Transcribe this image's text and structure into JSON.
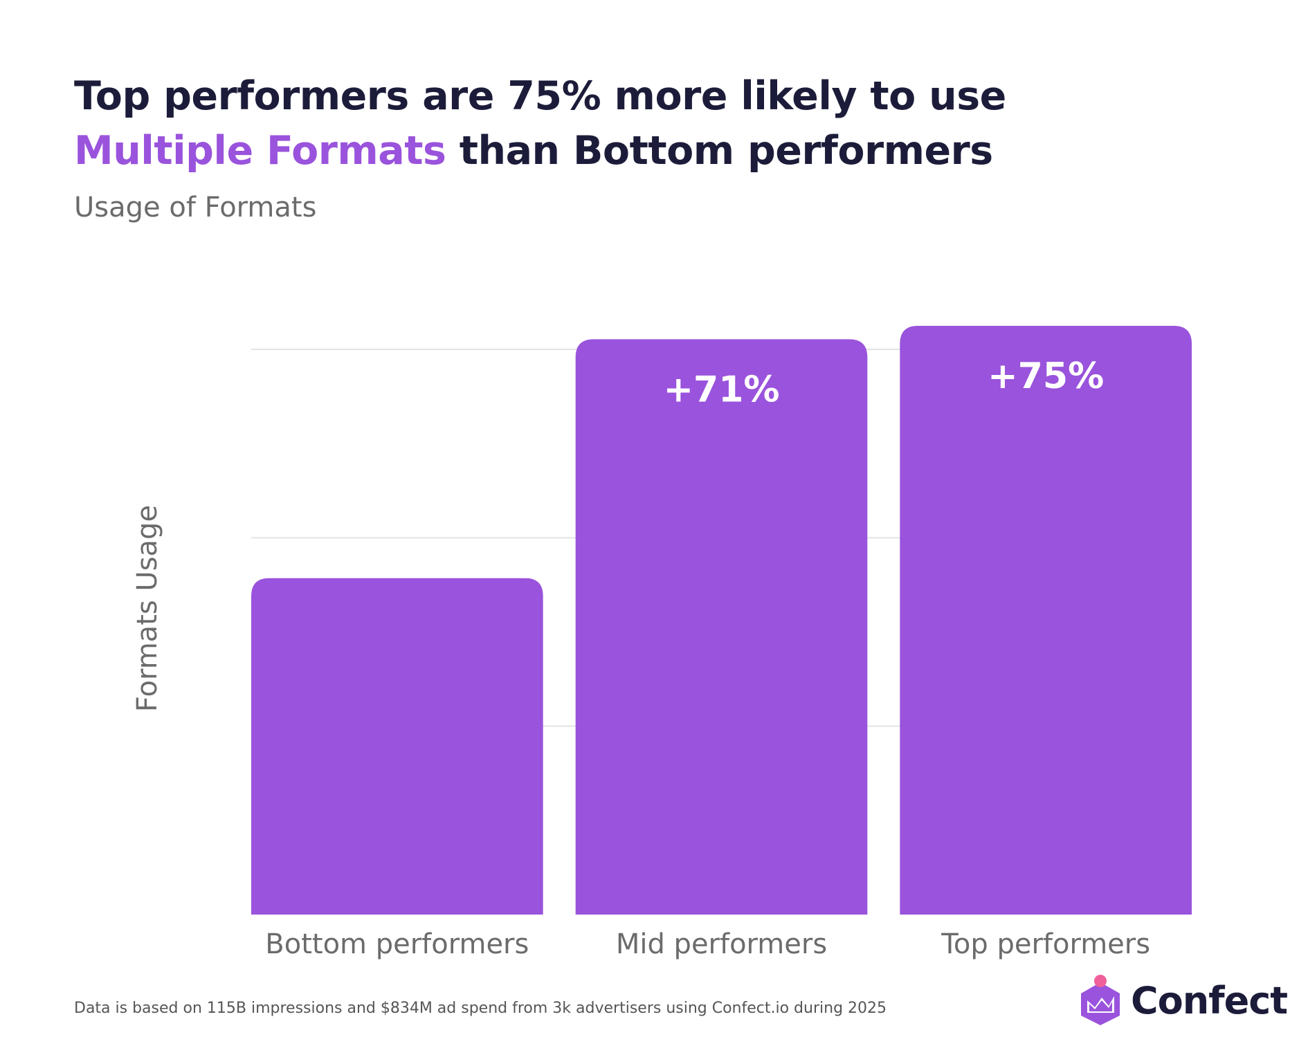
{
  "header": {
    "title_prefix": "Top performers are 75% more likely to use ",
    "title_highlight": "Multiple Formats",
    "title_suffix": " than Bottom performers",
    "subtitle": "Usage of Formats"
  },
  "footer": {
    "note": "Data is based on 115B impressions and $834M ad spend from 3k advertisers using Confect.io during 2025",
    "brand": "Confect",
    "logo_icon": "confect-logo-icon"
  },
  "colors": {
    "bar": "#9a53dc",
    "accent": "#9a53dc",
    "title": "#1c1c3a",
    "grid": "#e3e3e3",
    "axis_text": "#6b6b6b",
    "logo_dot": "#f0609a"
  },
  "chart_data": {
    "type": "bar",
    "title": "Usage of Formats",
    "xlabel": "",
    "ylabel": "Formats Usage",
    "categories": [
      "Bottom performers",
      "Mid performers",
      "Top performers"
    ],
    "values": [
      1.0,
      1.71,
      1.75
    ],
    "data_labels": [
      "",
      "+71%",
      "+75%"
    ],
    "ylim": [
      0,
      1.68
    ],
    "grid_values": [
      0.56,
      1.12,
      1.68
    ],
    "grid": true,
    "legend": "none"
  }
}
